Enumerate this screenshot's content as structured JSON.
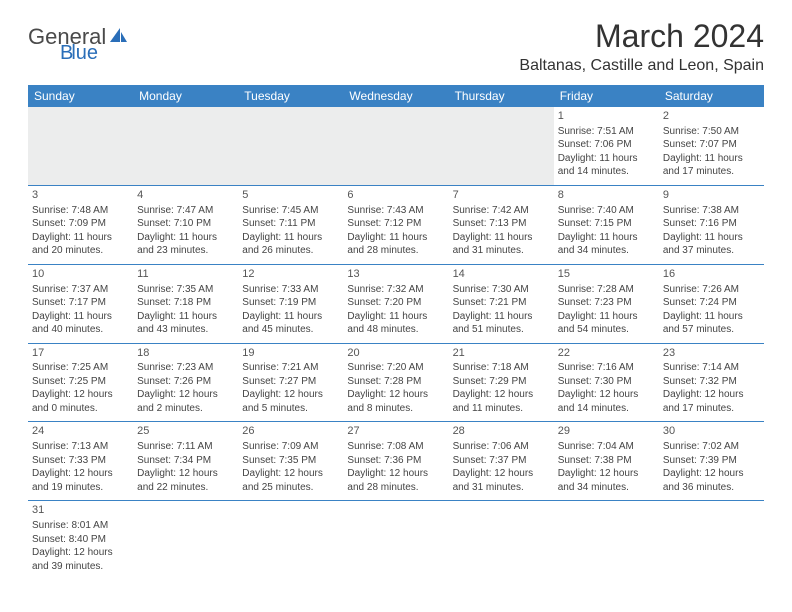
{
  "logo": {
    "main": "Genera",
    "accent": "lue",
    "mid": "B"
  },
  "title": "March 2024",
  "location": "Baltanas, Castille and Leon, Spain",
  "colors": {
    "header_bg": "#3a82c4",
    "header_text": "#ffffff",
    "border": "#3a82c4",
    "empty_bg": "#eceded",
    "text": "#444444",
    "title_text": "#333333",
    "logo_gray": "#4a4a4a",
    "logo_blue": "#2a6eb8"
  },
  "day_headers": [
    "Sunday",
    "Monday",
    "Tuesday",
    "Wednesday",
    "Thursday",
    "Friday",
    "Saturday"
  ],
  "weeks": [
    [
      null,
      null,
      null,
      null,
      null,
      {
        "n": "1",
        "sr": "Sunrise: 7:51 AM",
        "ss": "Sunset: 7:06 PM",
        "dl": "Daylight: 11 hours and 14 minutes."
      },
      {
        "n": "2",
        "sr": "Sunrise: 7:50 AM",
        "ss": "Sunset: 7:07 PM",
        "dl": "Daylight: 11 hours and 17 minutes."
      }
    ],
    [
      {
        "n": "3",
        "sr": "Sunrise: 7:48 AM",
        "ss": "Sunset: 7:09 PM",
        "dl": "Daylight: 11 hours and 20 minutes."
      },
      {
        "n": "4",
        "sr": "Sunrise: 7:47 AM",
        "ss": "Sunset: 7:10 PM",
        "dl": "Daylight: 11 hours and 23 minutes."
      },
      {
        "n": "5",
        "sr": "Sunrise: 7:45 AM",
        "ss": "Sunset: 7:11 PM",
        "dl": "Daylight: 11 hours and 26 minutes."
      },
      {
        "n": "6",
        "sr": "Sunrise: 7:43 AM",
        "ss": "Sunset: 7:12 PM",
        "dl": "Daylight: 11 hours and 28 minutes."
      },
      {
        "n": "7",
        "sr": "Sunrise: 7:42 AM",
        "ss": "Sunset: 7:13 PM",
        "dl": "Daylight: 11 hours and 31 minutes."
      },
      {
        "n": "8",
        "sr": "Sunrise: 7:40 AM",
        "ss": "Sunset: 7:15 PM",
        "dl": "Daylight: 11 hours and 34 minutes."
      },
      {
        "n": "9",
        "sr": "Sunrise: 7:38 AM",
        "ss": "Sunset: 7:16 PM",
        "dl": "Daylight: 11 hours and 37 minutes."
      }
    ],
    [
      {
        "n": "10",
        "sr": "Sunrise: 7:37 AM",
        "ss": "Sunset: 7:17 PM",
        "dl": "Daylight: 11 hours and 40 minutes."
      },
      {
        "n": "11",
        "sr": "Sunrise: 7:35 AM",
        "ss": "Sunset: 7:18 PM",
        "dl": "Daylight: 11 hours and 43 minutes."
      },
      {
        "n": "12",
        "sr": "Sunrise: 7:33 AM",
        "ss": "Sunset: 7:19 PM",
        "dl": "Daylight: 11 hours and 45 minutes."
      },
      {
        "n": "13",
        "sr": "Sunrise: 7:32 AM",
        "ss": "Sunset: 7:20 PM",
        "dl": "Daylight: 11 hours and 48 minutes."
      },
      {
        "n": "14",
        "sr": "Sunrise: 7:30 AM",
        "ss": "Sunset: 7:21 PM",
        "dl": "Daylight: 11 hours and 51 minutes."
      },
      {
        "n": "15",
        "sr": "Sunrise: 7:28 AM",
        "ss": "Sunset: 7:23 PM",
        "dl": "Daylight: 11 hours and 54 minutes."
      },
      {
        "n": "16",
        "sr": "Sunrise: 7:26 AM",
        "ss": "Sunset: 7:24 PM",
        "dl": "Daylight: 11 hours and 57 minutes."
      }
    ],
    [
      {
        "n": "17",
        "sr": "Sunrise: 7:25 AM",
        "ss": "Sunset: 7:25 PM",
        "dl": "Daylight: 12 hours and 0 minutes."
      },
      {
        "n": "18",
        "sr": "Sunrise: 7:23 AM",
        "ss": "Sunset: 7:26 PM",
        "dl": "Daylight: 12 hours and 2 minutes."
      },
      {
        "n": "19",
        "sr": "Sunrise: 7:21 AM",
        "ss": "Sunset: 7:27 PM",
        "dl": "Daylight: 12 hours and 5 minutes."
      },
      {
        "n": "20",
        "sr": "Sunrise: 7:20 AM",
        "ss": "Sunset: 7:28 PM",
        "dl": "Daylight: 12 hours and 8 minutes."
      },
      {
        "n": "21",
        "sr": "Sunrise: 7:18 AM",
        "ss": "Sunset: 7:29 PM",
        "dl": "Daylight: 12 hours and 11 minutes."
      },
      {
        "n": "22",
        "sr": "Sunrise: 7:16 AM",
        "ss": "Sunset: 7:30 PM",
        "dl": "Daylight: 12 hours and 14 minutes."
      },
      {
        "n": "23",
        "sr": "Sunrise: 7:14 AM",
        "ss": "Sunset: 7:32 PM",
        "dl": "Daylight: 12 hours and 17 minutes."
      }
    ],
    [
      {
        "n": "24",
        "sr": "Sunrise: 7:13 AM",
        "ss": "Sunset: 7:33 PM",
        "dl": "Daylight: 12 hours and 19 minutes."
      },
      {
        "n": "25",
        "sr": "Sunrise: 7:11 AM",
        "ss": "Sunset: 7:34 PM",
        "dl": "Daylight: 12 hours and 22 minutes."
      },
      {
        "n": "26",
        "sr": "Sunrise: 7:09 AM",
        "ss": "Sunset: 7:35 PM",
        "dl": "Daylight: 12 hours and 25 minutes."
      },
      {
        "n": "27",
        "sr": "Sunrise: 7:08 AM",
        "ss": "Sunset: 7:36 PM",
        "dl": "Daylight: 12 hours and 28 minutes."
      },
      {
        "n": "28",
        "sr": "Sunrise: 7:06 AM",
        "ss": "Sunset: 7:37 PM",
        "dl": "Daylight: 12 hours and 31 minutes."
      },
      {
        "n": "29",
        "sr": "Sunrise: 7:04 AM",
        "ss": "Sunset: 7:38 PM",
        "dl": "Daylight: 12 hours and 34 minutes."
      },
      {
        "n": "30",
        "sr": "Sunrise: 7:02 AM",
        "ss": "Sunset: 7:39 PM",
        "dl": "Daylight: 12 hours and 36 minutes."
      }
    ],
    [
      {
        "n": "31",
        "sr": "Sunrise: 8:01 AM",
        "ss": "Sunset: 8:40 PM",
        "dl": "Daylight: 12 hours and 39 minutes."
      },
      null,
      null,
      null,
      null,
      null,
      null
    ]
  ]
}
